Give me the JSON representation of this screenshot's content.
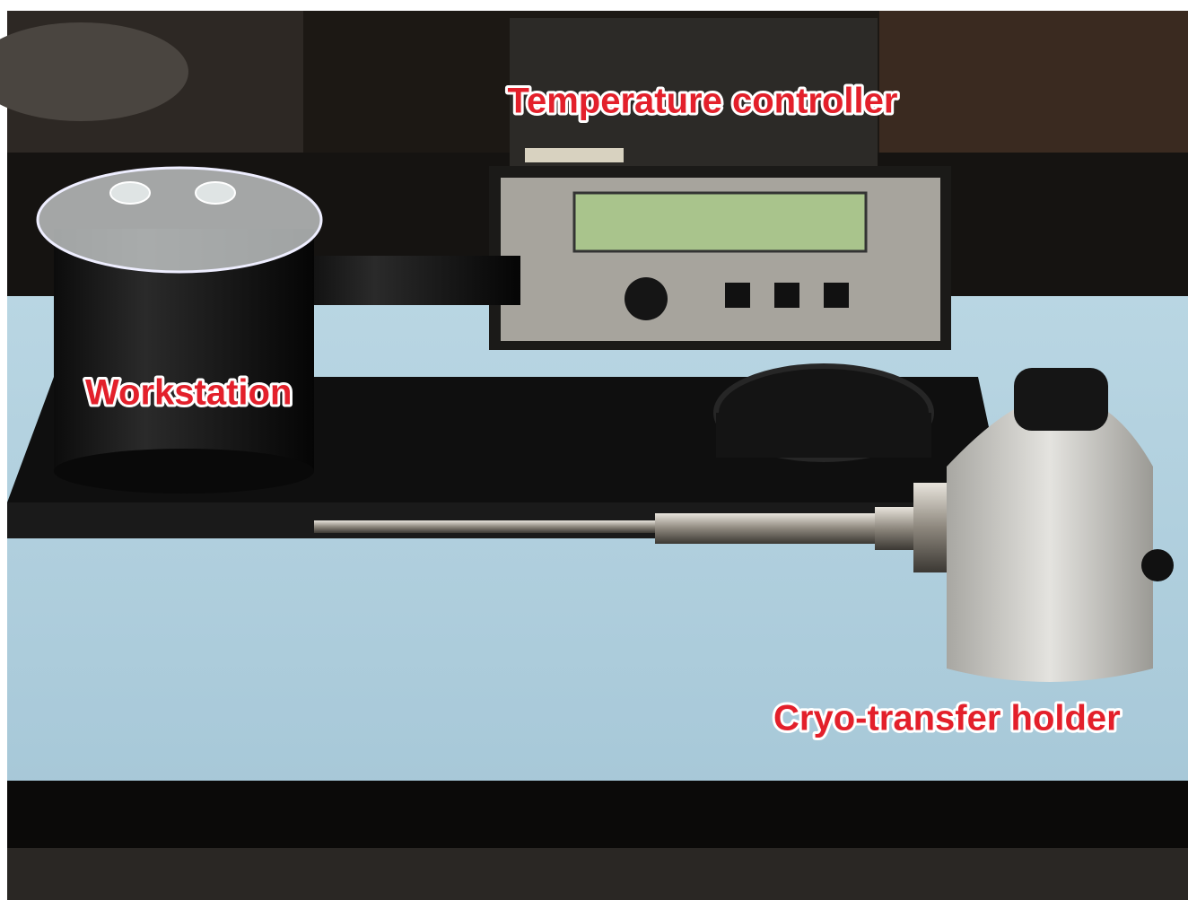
{
  "labels": {
    "temperature_controller": "Temperature controller",
    "workstation": "Workstation",
    "cryo_transfer_holder": "Cryo-transfer holder"
  }
}
